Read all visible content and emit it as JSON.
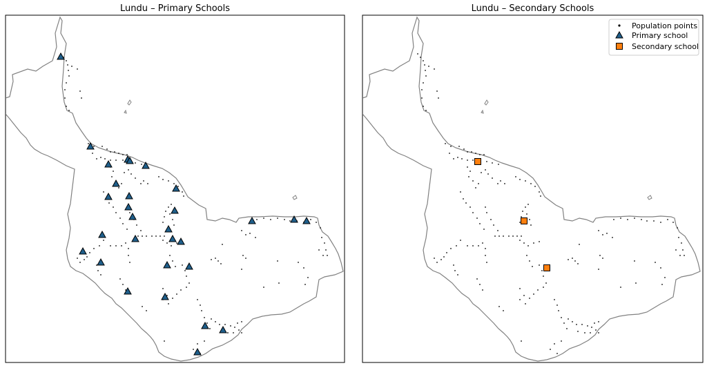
{
  "panels": [
    {
      "title": "Lundu – Primary Schools"
    },
    {
      "title": "Lundu – Secondary Schools"
    }
  ],
  "legend": {
    "items": [
      {
        "label": "Population points",
        "marker": "dot"
      },
      {
        "label": "Primary school",
        "marker": "triangle"
      },
      {
        "label": "Secondary school",
        "marker": "square"
      }
    ]
  },
  "colors": {
    "primary_school": "#1f5f8b",
    "secondary_school": "#ff7f0e",
    "boundary": "#808080",
    "population": "#000000"
  }
}
